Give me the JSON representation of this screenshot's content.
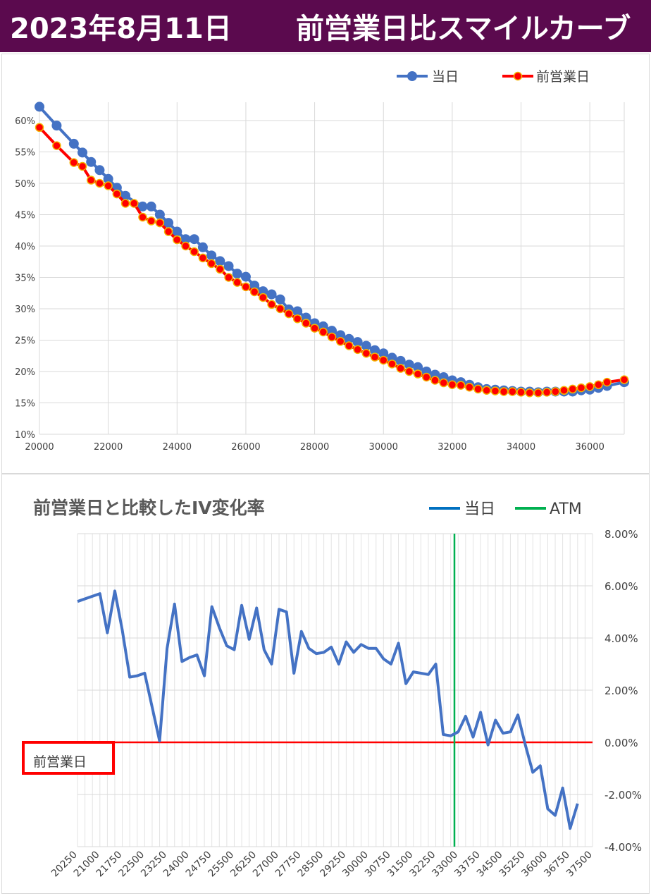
{
  "header": {
    "date": "2023年8月11日",
    "title": "前営業日比スマイルカーブ"
  },
  "colors": {
    "header_bg": "#5b0a4e",
    "series_today": "#4472c4",
    "series_prev": "#ff0000",
    "atm_line": "#00b050",
    "zero_line": "#ff0000",
    "grid": "#d9d9d9"
  },
  "chart_data": [
    {
      "type": "line",
      "title": "",
      "xlabel": "",
      "ylabel": "",
      "xlim": [
        20000,
        37000
      ],
      "ylim": [
        0.1,
        0.63
      ],
      "x_ticks": [
        20000,
        22000,
        24000,
        26000,
        28000,
        30000,
        32000,
        34000,
        36000
      ],
      "x_tick_labels": [
        "20000",
        "22000",
        "24000",
        "26000",
        "28000",
        "30000",
        "32000",
        "34000",
        "36000"
      ],
      "y_ticks": [
        0.1,
        0.15,
        0.2,
        0.25,
        0.3,
        0.35,
        0.4,
        0.45,
        0.5,
        0.55,
        0.6
      ],
      "y_tick_labels": [
        "10%",
        "15%",
        "20%",
        "25%",
        "30%",
        "35%",
        "40%",
        "45%",
        "50%",
        "55%",
        "60%"
      ],
      "grid": true,
      "legend_position": "top-right",
      "series": [
        {
          "name": "当日",
          "x": [
            20000,
            20500,
            21000,
            21250,
            21500,
            21750,
            22000,
            22250,
            22500,
            23000,
            23250,
            23500,
            23750,
            24000,
            24250,
            24500,
            24750,
            25000,
            25250,
            25500,
            25750,
            26000,
            26250,
            26500,
            26750,
            27000,
            27250,
            27500,
            27750,
            28000,
            28250,
            28500,
            28750,
            29000,
            29250,
            29500,
            29750,
            30000,
            30250,
            30500,
            30750,
            31000,
            31250,
            31500,
            31750,
            32000,
            32250,
            32500,
            32750,
            33000,
            33250,
            33500,
            33750,
            34000,
            34250,
            34500,
            34750,
            35000,
            35250,
            35500,
            35750,
            36000,
            36250,
            36500,
            37000
          ],
          "values": [
            0.622,
            0.592,
            0.563,
            0.549,
            0.534,
            0.521,
            0.507,
            0.493,
            0.48,
            0.463,
            0.463,
            0.45,
            0.437,
            0.423,
            0.411,
            0.411,
            0.398,
            0.385,
            0.376,
            0.368,
            0.356,
            0.351,
            0.337,
            0.328,
            0.323,
            0.315,
            0.299,
            0.296,
            0.286,
            0.277,
            0.272,
            0.265,
            0.258,
            0.252,
            0.247,
            0.241,
            0.234,
            0.229,
            0.222,
            0.217,
            0.211,
            0.207,
            0.2,
            0.195,
            0.191,
            0.186,
            0.183,
            0.179,
            0.175,
            0.172,
            0.171,
            0.17,
            0.169,
            0.168,
            0.168,
            0.167,
            0.168,
            0.168,
            0.168,
            0.168,
            0.17,
            0.171,
            0.174,
            0.177,
            0.183
          ]
        },
        {
          "name": "前営業日",
          "x": [
            20000,
            20500,
            21000,
            21250,
            21500,
            21750,
            22000,
            22250,
            22500,
            22750,
            23000,
            23250,
            23500,
            23750,
            24000,
            24250,
            24500,
            24750,
            25000,
            25250,
            25500,
            25750,
            26000,
            26250,
            26500,
            26750,
            27000,
            27250,
            27500,
            27750,
            28000,
            28250,
            28500,
            28750,
            29000,
            29250,
            29500,
            29750,
            30000,
            30250,
            30500,
            30750,
            31000,
            31250,
            31500,
            31750,
            32000,
            32250,
            32500,
            32750,
            33000,
            33250,
            33500,
            33750,
            34000,
            34250,
            34500,
            34750,
            35000,
            35250,
            35500,
            35750,
            36000,
            36250,
            36500,
            37000
          ],
          "values": [
            0.589,
            0.56,
            0.533,
            0.527,
            0.505,
            0.5,
            0.496,
            0.483,
            0.468,
            0.468,
            0.446,
            0.44,
            0.437,
            0.423,
            0.41,
            0.4,
            0.391,
            0.381,
            0.372,
            0.363,
            0.35,
            0.342,
            0.335,
            0.327,
            0.318,
            0.307,
            0.3,
            0.292,
            0.284,
            0.277,
            0.269,
            0.263,
            0.255,
            0.248,
            0.241,
            0.235,
            0.229,
            0.223,
            0.218,
            0.212,
            0.205,
            0.2,
            0.196,
            0.191,
            0.186,
            0.182,
            0.179,
            0.178,
            0.175,
            0.172,
            0.17,
            0.169,
            0.168,
            0.168,
            0.167,
            0.166,
            0.166,
            0.167,
            0.168,
            0.17,
            0.172,
            0.174,
            0.176,
            0.179,
            0.183,
            0.187
          ]
        }
      ]
    },
    {
      "type": "line",
      "title": "前営業日と比較したIV変化率",
      "xlabel": "",
      "ylabel": "",
      "xlim": [
        20250,
        37500
      ],
      "ylim": [
        -0.04,
        0.08
      ],
      "y_axis_side": "right",
      "y_ticks": [
        -0.04,
        -0.02,
        0.0,
        0.02,
        0.04,
        0.06,
        0.08
      ],
      "y_tick_labels": [
        "-4.00%",
        "-2.00%",
        "0.00%",
        "2.00%",
        "4.00%",
        "6.00%",
        "8.00%"
      ],
      "x_ticks": [
        20250,
        21000,
        21750,
        22500,
        23250,
        24000,
        24750,
        25500,
        26250,
        27000,
        27750,
        28500,
        29250,
        30000,
        30750,
        31500,
        32250,
        33000,
        33750,
        34500,
        35250,
        36000,
        36750,
        37500
      ],
      "x_tick_labels": [
        "20250",
        "21000",
        "21750",
        "22500",
        "23250",
        "24000",
        "24750",
        "25500",
        "26250",
        "27000",
        "27750",
        "28500",
        "29250",
        "30000",
        "30750",
        "31500",
        "32250",
        "33000",
        "33750",
        "34500",
        "35250",
        "36000",
        "36750",
        "37500"
      ],
      "grid": true,
      "legend_position": "top-right",
      "atm_x": 32875,
      "atm_label": "ATM",
      "zero_label": "前営業日",
      "series": [
        {
          "name": "当日",
          "x": [
            20250,
            21000,
            21250,
            21500,
            21750,
            22000,
            22250,
            22500,
            23000,
            23250,
            23500,
            23750,
            24000,
            24250,
            24500,
            24750,
            25000,
            25250,
            25500,
            25750,
            26000,
            26250,
            26500,
            26750,
            27000,
            27250,
            27500,
            27750,
            28000,
            28250,
            28500,
            28750,
            29000,
            29250,
            29500,
            29750,
            30000,
            30250,
            30500,
            30750,
            31000,
            31250,
            31500,
            31750,
            32000,
            32250,
            32500,
            32750,
            33000,
            33250,
            33500,
            33750,
            34000,
            34250,
            34500,
            34750,
            35000,
            35250,
            35500,
            35750,
            36000,
            36250,
            36500,
            36750,
            37000
          ],
          "values": [
            0.054,
            0.057,
            0.042,
            0.058,
            0.043,
            0.025,
            0.0255,
            0.0265,
            0.0005,
            0.036,
            0.053,
            0.031,
            0.0325,
            0.0335,
            0.0255,
            0.052,
            0.044,
            0.037,
            0.0355,
            0.0525,
            0.0395,
            0.0515,
            0.0355,
            0.03,
            0.051,
            0.05,
            0.0265,
            0.0425,
            0.036,
            0.034,
            0.0345,
            0.0365,
            0.03,
            0.0385,
            0.0345,
            0.0375,
            0.036,
            0.036,
            0.032,
            0.03,
            0.038,
            0.0225,
            0.027,
            0.0265,
            0.026,
            0.03,
            0.003,
            0.0025,
            0.004,
            0.01,
            0.002,
            0.0115,
            -0.001,
            0.0085,
            0.0035,
            0.004,
            0.0105,
            -0.001,
            -0.0115,
            -0.009,
            -0.0255,
            -0.028,
            -0.0175,
            -0.033,
            -0.0235
          ]
        }
      ]
    }
  ]
}
